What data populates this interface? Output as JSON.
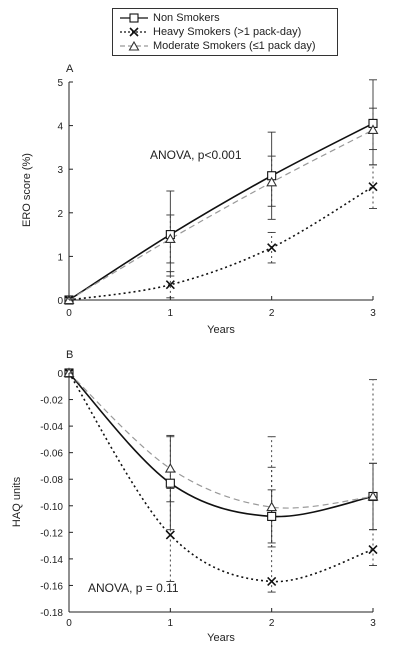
{
  "legend": {
    "items": [
      {
        "key": "non",
        "label": "Non Smokers"
      },
      {
        "key": "heavy",
        "label": "Heavy Smokers (>1 pack-day)"
      },
      {
        "key": "moderate",
        "label": "Moderate Smokers (≤1 pack day)"
      }
    ]
  },
  "colors": {
    "non": "#111111",
    "heavy": "#111111",
    "moderate": "#999999"
  },
  "chart_data": [
    {
      "type": "line",
      "panel_label": "A",
      "annotation": "ANOVA,  p<0.001",
      "xlabel": "Years",
      "ylabel": "ERO score (%)",
      "x": [
        0,
        1,
        2,
        3
      ],
      "xlim": [
        0,
        3
      ],
      "ylim": [
        0,
        5
      ],
      "xticks": [
        0,
        1,
        2,
        3
      ],
      "yticks": [
        0,
        1,
        2,
        3,
        4,
        5
      ],
      "grid": false,
      "series": [
        {
          "name": "Non Smokers",
          "key": "non",
          "values": [
            0,
            1.5,
            2.85,
            4.05
          ],
          "error_low": [
            0,
            0.55,
            1.85,
            3.1
          ],
          "error_high": [
            0,
            2.5,
            3.85,
            5.05
          ]
        },
        {
          "name": "Heavy Smokers (>1 pack-day)",
          "key": "heavy",
          "values": [
            0,
            0.35,
            1.2,
            2.6
          ],
          "error_low": [
            0,
            0.05,
            0.85,
            2.1
          ],
          "error_high": [
            0,
            0.65,
            1.55,
            3.1
          ]
        },
        {
          "name": "Moderate Smokers (≤1 pack day)",
          "key": "moderate",
          "values": [
            0,
            1.4,
            2.7,
            3.9
          ],
          "error_low": [
            0,
            0.85,
            2.15,
            3.45
          ],
          "error_high": [
            0,
            1.95,
            3.3,
            4.4
          ]
        }
      ]
    },
    {
      "type": "line",
      "panel_label": "B",
      "annotation": "ANOVA,  p = 0.11",
      "xlabel": "Years",
      "ylabel": "HAQ units",
      "x": [
        0,
        1,
        2,
        3
      ],
      "xlim": [
        0,
        3
      ],
      "ylim": [
        -0.18,
        0
      ],
      "xticks": [
        0,
        1,
        2,
        3
      ],
      "yticks": [
        0,
        -0.02,
        -0.04,
        -0.06,
        -0.08,
        -0.1,
        -0.12,
        -0.14,
        -0.16,
        -0.18
      ],
      "ytick_labels": [
        "0",
        "-0.02",
        "-0.04",
        "-0.06",
        "-0.08",
        "-0.10",
        "-0.12",
        "-0.14",
        "-0.16",
        "-0.18"
      ],
      "grid": false,
      "series": [
        {
          "name": "Non Smokers",
          "key": "non",
          "values": [
            0,
            -0.083,
            -0.108,
            -0.093
          ],
          "error_low": [
            0,
            -0.118,
            -0.128,
            -0.118
          ],
          "error_high": [
            0,
            -0.048,
            -0.088,
            -0.068
          ]
        },
        {
          "name": "Heavy Smokers (>1 pack-day)",
          "key": "heavy",
          "values": [
            0,
            -0.122,
            -0.157,
            -0.133
          ],
          "error_low": [
            0,
            -0.157,
            -0.165,
            -0.145
          ],
          "error_high": [
            0,
            -0.087,
            -0.048,
            -0.005
          ]
        },
        {
          "name": "Moderate Smokers (≤1 pack day)",
          "key": "moderate",
          "values": [
            0,
            -0.072,
            -0.101,
            -0.093
          ],
          "error_low": [
            0,
            -0.097,
            -0.131,
            -0.118
          ],
          "error_high": [
            0,
            -0.047,
            -0.071,
            -0.068
          ]
        }
      ]
    }
  ]
}
